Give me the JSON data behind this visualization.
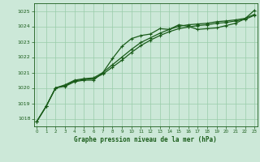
{
  "bg_color": "#cce8d8",
  "grid_color": "#99ccaa",
  "line_color": "#1a5c1a",
  "marker_color": "#1a5c1a",
  "xlabel": "Graphe pression niveau de la mer (hPa)",
  "xlabel_color": "#1a5c1a",
  "ylim": [
    1017.5,
    1025.5
  ],
  "xlim": [
    -0.3,
    23.3
  ],
  "yticks": [
    1018,
    1019,
    1020,
    1021,
    1022,
    1023,
    1024,
    1025
  ],
  "xticks": [
    0,
    1,
    2,
    3,
    4,
    5,
    6,
    7,
    8,
    9,
    10,
    11,
    12,
    13,
    14,
    15,
    16,
    17,
    18,
    19,
    20,
    21,
    22,
    23
  ],
  "series1": [
    1017.8,
    1018.8,
    1020.0,
    1020.1,
    1020.4,
    1020.5,
    1020.5,
    1021.0,
    1021.9,
    1022.7,
    1023.2,
    1023.4,
    1023.5,
    1023.85,
    1023.8,
    1024.1,
    1024.0,
    1023.8,
    1023.85,
    1023.9,
    1024.05,
    1024.2,
    1024.5,
    1025.05
  ],
  "series2": [
    1017.8,
    1018.8,
    1020.0,
    1020.15,
    1020.45,
    1020.55,
    1020.6,
    1020.9,
    1021.35,
    1021.8,
    1022.3,
    1022.75,
    1023.1,
    1023.4,
    1023.65,
    1023.85,
    1023.95,
    1024.05,
    1024.1,
    1024.2,
    1024.25,
    1024.35,
    1024.45,
    1024.72
  ],
  "series3": [
    1017.8,
    1018.8,
    1020.0,
    1020.2,
    1020.5,
    1020.6,
    1020.65,
    1021.0,
    1021.5,
    1022.0,
    1022.5,
    1022.95,
    1023.25,
    1023.55,
    1023.8,
    1024.0,
    1024.1,
    1024.15,
    1024.2,
    1024.3,
    1024.35,
    1024.42,
    1024.52,
    1024.78
  ]
}
